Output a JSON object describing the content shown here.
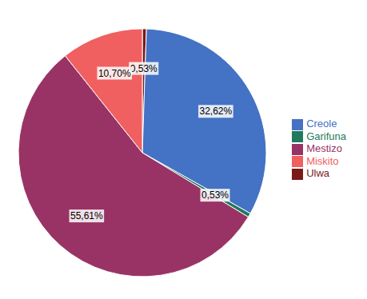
{
  "chart_data": {
    "type": "pie",
    "categories": [
      "Ulwa",
      "Creole",
      "Garifuna",
      "Mestizo",
      "Miskito"
    ],
    "values": [
      0.53,
      32.62,
      0.53,
      55.61,
      10.7
    ],
    "value_labels": [
      "0,53%",
      "32,62%",
      "0,53%",
      "55,61%",
      "10,70%"
    ],
    "colors": [
      "#7B1818",
      "#4472C4",
      "#1F7A5E",
      "#993366",
      "#F06060"
    ],
    "data_labels": true,
    "legend": "right"
  }
}
